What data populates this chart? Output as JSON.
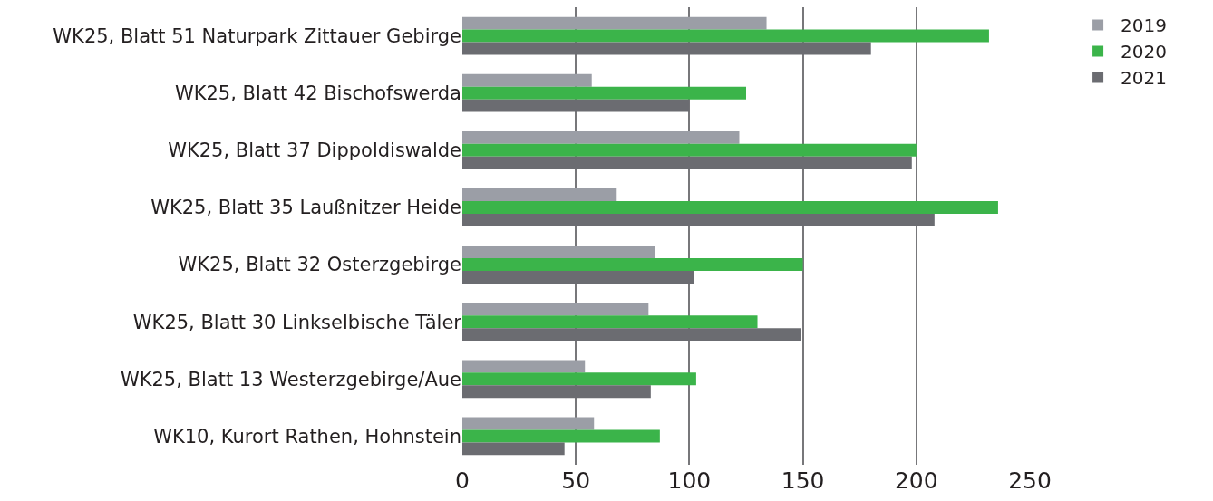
{
  "chart_data": {
    "type": "bar",
    "orientation": "horizontal",
    "categories": [
      "WK25, Blatt 51 Naturpark Zittauer Gebirge",
      "WK25, Blatt 42 Bischofswerda",
      "WK25, Blatt 37 Dippoldiswalde",
      "WK25, Blatt 35 Laußnitzer Heide",
      "WK25, Blatt 32 Osterzgebirge",
      "WK25, Blatt 30 Linkselbische Täler",
      "WK25, Blatt 13 Westerzgebirge/Aue",
      "WK10, Kurort Rathen, Hohnstein"
    ],
    "series": [
      {
        "name": "2019",
        "color": "#9b9ea6",
        "values": [
          134,
          57,
          122,
          68,
          85,
          82,
          54,
          58
        ]
      },
      {
        "name": "2020",
        "color": "#3bb44a",
        "values": [
          232,
          125,
          200,
          236,
          150,
          130,
          103,
          87
        ]
      },
      {
        "name": "2021",
        "color": "#6b6c71",
        "values": [
          180,
          100,
          198,
          208,
          102,
          149,
          83,
          45
        ]
      }
    ],
    "xlim": [
      0,
      250
    ],
    "xticks": [
      0,
      50,
      100,
      150,
      200,
      250
    ],
    "grid": "x",
    "legend": "top right"
  }
}
